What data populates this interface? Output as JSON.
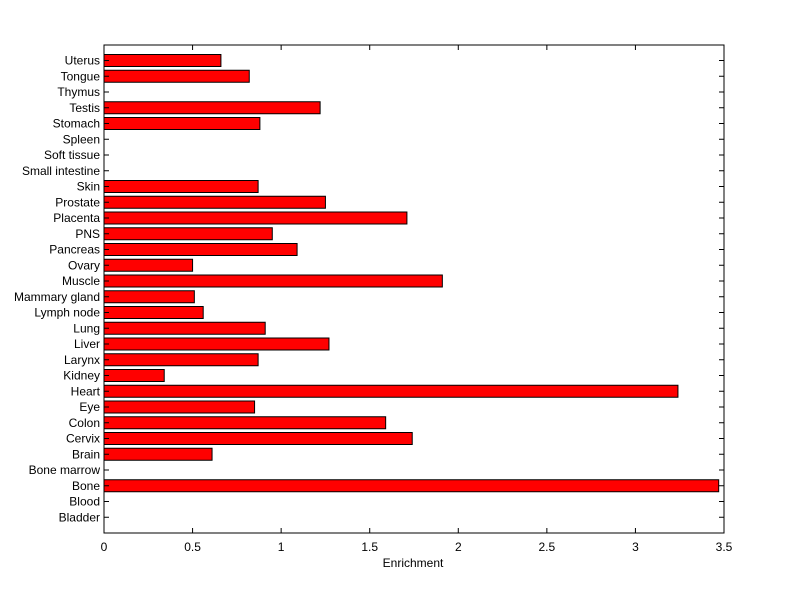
{
  "chart_data": {
    "type": "bar",
    "orientation": "horizontal",
    "title": "",
    "xlabel": "Enrichment",
    "ylabel": "",
    "xlim": [
      0,
      3.5
    ],
    "xticks": [
      0,
      0.5,
      1,
      1.5,
      2,
      2.5,
      3,
      3.5
    ],
    "xtick_labels": [
      "0",
      "0.5",
      "1",
      "1.5",
      "2",
      "2.5",
      "3",
      "3.5"
    ],
    "grid": false,
    "legend": "none",
    "bar_color": "#ff0000",
    "bar_edge_color": "#000000",
    "categories": [
      "Bladder",
      "Blood",
      "Bone",
      "Bone marrow",
      "Brain",
      "Cervix",
      "Colon",
      "Eye",
      "Heart",
      "Kidney",
      "Larynx",
      "Liver",
      "Lung",
      "Lymph node",
      "Mammary gland",
      "Muscle",
      "Ovary",
      "Pancreas",
      "PNS",
      "Placenta",
      "Prostate",
      "Skin",
      "Small intestine",
      "Soft tissue",
      "Spleen",
      "Stomach",
      "Testis",
      "Thymus",
      "Tongue",
      "Uterus"
    ],
    "values": [
      0,
      0,
      3.47,
      0,
      0.61,
      1.74,
      1.59,
      0.85,
      3.24,
      0.34,
      0.87,
      1.27,
      0.91,
      0.56,
      0.51,
      1.91,
      0.5,
      1.09,
      0.95,
      1.71,
      1.25,
      0.87,
      0,
      0,
      0,
      0.88,
      1.22,
      0,
      0.82,
      0.66
    ]
  }
}
